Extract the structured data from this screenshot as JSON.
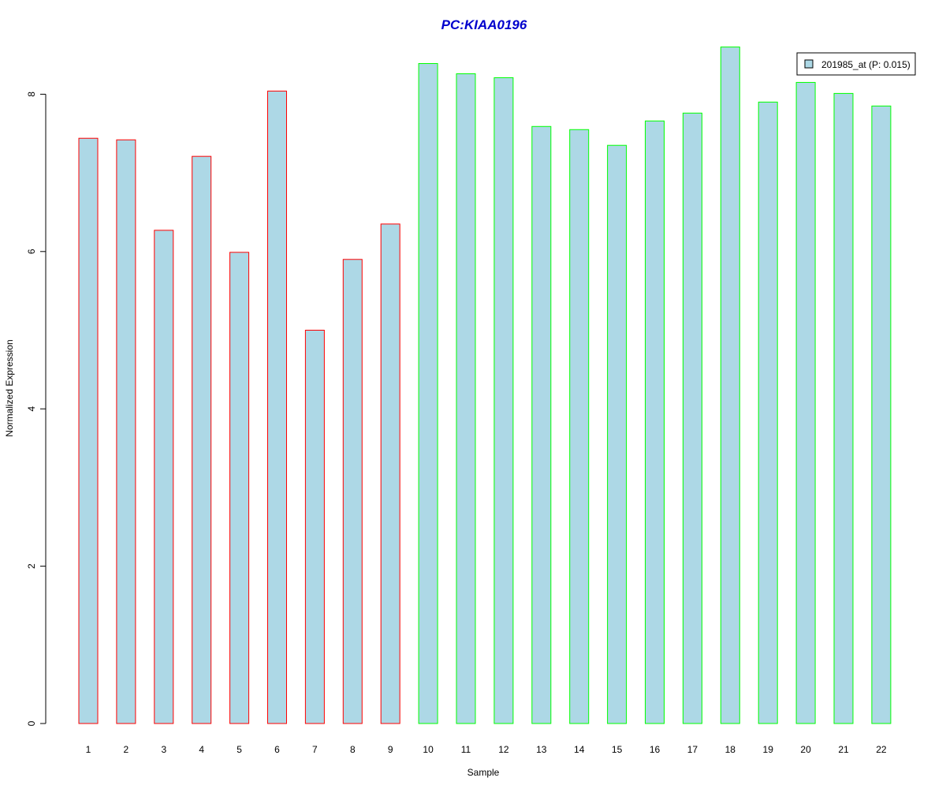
{
  "chart_data": {
    "type": "bar",
    "title": "PC:KIAA0196",
    "xlabel": "Sample",
    "ylabel": "Normalized Expression",
    "categories": [
      "1",
      "2",
      "3",
      "4",
      "5",
      "6",
      "7",
      "8",
      "9",
      "10",
      "11",
      "12",
      "13",
      "14",
      "15",
      "16",
      "17",
      "18",
      "19",
      "20",
      "21",
      "22"
    ],
    "values": [
      7.44,
      7.42,
      6.27,
      7.21,
      5.99,
      8.04,
      5.0,
      5.9,
      6.35,
      8.39,
      8.26,
      8.21,
      7.59,
      7.55,
      7.35,
      7.66,
      7.76,
      8.6,
      7.9,
      8.15,
      8.01,
      7.85
    ],
    "groups": [
      "red",
      "red",
      "red",
      "red",
      "red",
      "red",
      "red",
      "red",
      "red",
      "green",
      "green",
      "green",
      "green",
      "green",
      "green",
      "green",
      "green",
      "green",
      "green",
      "green",
      "green",
      "green"
    ],
    "yticks": [
      0,
      2,
      4,
      6,
      8
    ],
    "ylim": [
      0,
      8.8
    ],
    "legend": {
      "label": "201985_at (P: 0.015)",
      "position": "top-right"
    },
    "colors": {
      "fill": "#add8e6",
      "border_red": "#ff0000",
      "border_green": "#00ff00",
      "title": "#0000cd"
    },
    "grid": false
  }
}
